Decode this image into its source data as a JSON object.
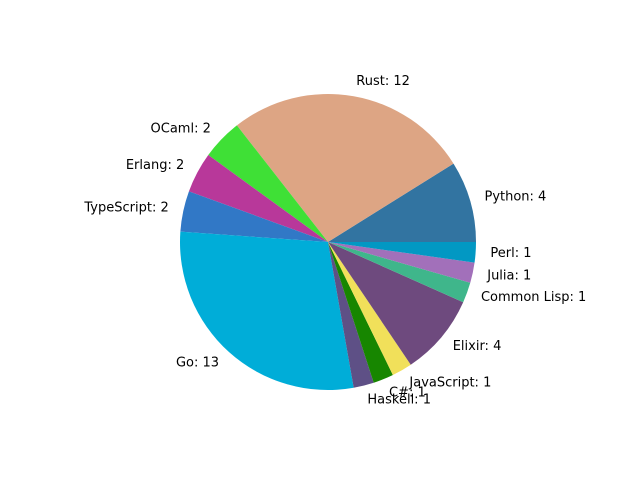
{
  "chart_data": {
    "type": "pie",
    "title": "",
    "start_angle_deg": 0,
    "direction": "counterclockwise",
    "slices": [
      {
        "label": "Python",
        "value": 4,
        "display": "Python: 4",
        "color": "#3274a1"
      },
      {
        "label": "Rust",
        "value": 12,
        "display": "Rust: 12",
        "color": "#dda584"
      },
      {
        "label": "OCaml",
        "value": 2,
        "display": "OCaml: 2",
        "color": "#3fe036"
      },
      {
        "label": "Erlang",
        "value": 2,
        "display": "Erlang: 2",
        "color": "#b8389a"
      },
      {
        "label": "TypeScript",
        "value": 2,
        "display": "TypeScript: 2",
        "color": "#3178c6"
      },
      {
        "label": "Go",
        "value": 13,
        "display": "Go: 13",
        "color": "#00add8"
      },
      {
        "label": "Haskell",
        "value": 1,
        "display": "Haskell: 1",
        "color": "#5e5086"
      },
      {
        "label": "C#",
        "value": 1,
        "display": "C#: 1",
        "color": "#178600"
      },
      {
        "label": "JavaScript",
        "value": 1,
        "display": "JavaScript: 1",
        "color": "#f1e05a"
      },
      {
        "label": "Elixir",
        "value": 4,
        "display": "Elixir: 4",
        "color": "#6e4a7e"
      },
      {
        "label": "Common Lisp",
        "value": 1,
        "display": "Common Lisp: 1",
        "color": "#3fb68b"
      },
      {
        "label": "Julia",
        "value": 1,
        "display": "Julia: 1",
        "color": "#a270ba"
      },
      {
        "label": "Perl",
        "value": 1,
        "display": "Perl: 1",
        "color": "#0298c3"
      }
    ]
  }
}
